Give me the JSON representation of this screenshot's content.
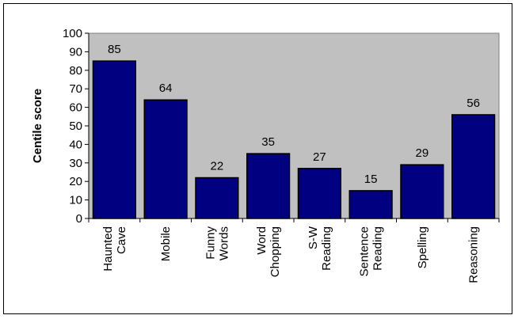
{
  "chart_data": {
    "type": "bar",
    "title": "",
    "xlabel": "",
    "ylabel": "Centile score",
    "ylim": [
      0,
      100
    ],
    "yticks": [
      "0",
      "10",
      "20",
      "30",
      "40",
      "50",
      "60",
      "70",
      "80",
      "90",
      "100"
    ],
    "categories": [
      [
        "Haunted",
        "Cave"
      ],
      [
        "Mobile"
      ],
      [
        "Funny",
        "Words"
      ],
      [
        "Word",
        "Chopping"
      ],
      [
        "S-W",
        "Reading"
      ],
      [
        "Sentence",
        "Reading"
      ],
      [
        "Spelling"
      ],
      [
        "Reasoning"
      ]
    ],
    "values": [
      85,
      64,
      22,
      35,
      27,
      15,
      29,
      56
    ],
    "grid": false,
    "legend": "none",
    "colors": {
      "plot_background": "#c0c0c0",
      "bar_fill": "#000080",
      "bar_stroke": "#000000"
    }
  }
}
